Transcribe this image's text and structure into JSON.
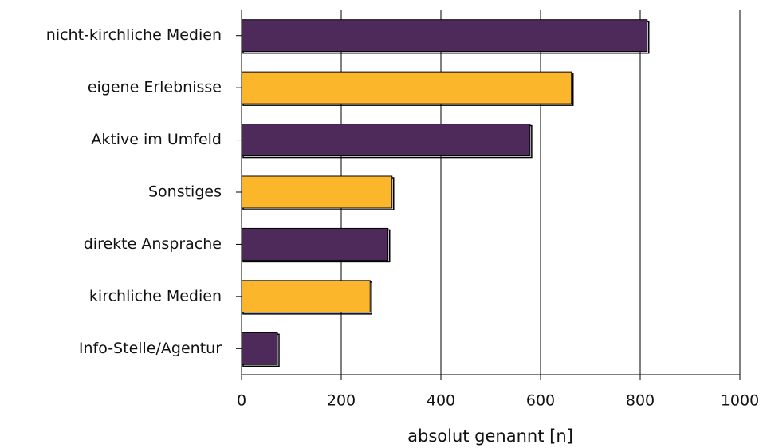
{
  "chart_data": {
    "type": "barh",
    "categories": [
      "nicht-kirchliche Medien",
      "eigene Erlebnisse",
      "Aktive im Umfeld",
      "Sonstiges",
      "direkte Ansprache",
      "kirchliche Medien",
      "Info-Stelle/Agentur"
    ],
    "values": [
      814,
      662,
      579,
      302,
      294,
      258,
      72
    ],
    "colors": [
      "#4e2a5a",
      "#fbb62b",
      "#4e2a5a",
      "#fbb62b",
      "#4e2a5a",
      "#fbb62b",
      "#4e2a5a"
    ],
    "xlabel": "absolut genannt [n]",
    "xlim": [
      0,
      1000
    ],
    "xticks": [
      0,
      200,
      400,
      600,
      800,
      1000
    ],
    "grid": true
  }
}
